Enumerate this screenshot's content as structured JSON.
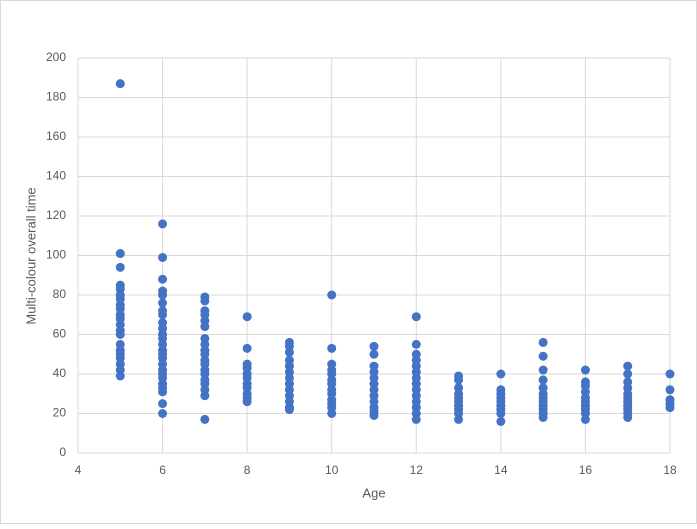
{
  "chart_data": {
    "type": "scatter",
    "x_label": "Age",
    "y_label": "Multi-colour overall time",
    "xlim": [
      4,
      18
    ],
    "xticks": [
      4,
      6,
      8,
      10,
      12,
      14,
      16,
      18
    ],
    "ylim": [
      0,
      200
    ],
    "yticks": [
      0,
      20,
      40,
      60,
      80,
      100,
      120,
      140,
      160,
      180,
      200
    ],
    "grid": true,
    "series": [
      {
        "color": "#4472c4",
        "x": [
          5,
          5,
          5,
          5,
          5,
          5,
          5,
          5,
          5,
          5,
          5,
          5,
          5,
          5,
          5,
          5,
          5,
          5,
          5,
          5,
          5,
          6,
          6,
          6,
          6,
          6,
          6,
          6,
          6,
          6,
          6,
          6,
          6,
          6,
          6,
          6,
          6,
          6,
          6,
          6,
          6,
          6,
          6,
          6,
          6,
          6,
          7,
          7,
          7,
          7,
          7,
          7,
          7,
          7,
          7,
          7,
          7,
          7,
          7,
          7,
          7,
          7,
          7,
          7,
          7,
          8,
          8,
          8,
          8,
          8,
          8,
          8,
          8,
          8,
          8,
          8,
          9,
          9,
          9,
          9,
          9,
          9,
          9,
          9,
          9,
          9,
          9,
          9,
          9,
          10,
          10,
          10,
          10,
          10,
          10,
          10,
          10,
          10,
          10,
          10,
          10,
          10,
          11,
          11,
          11,
          11,
          11,
          11,
          11,
          11,
          11,
          11,
          11,
          11,
          12,
          12,
          12,
          12,
          12,
          12,
          12,
          12,
          12,
          12,
          12,
          12,
          12,
          12,
          13,
          13,
          13,
          13,
          13,
          13,
          13,
          13,
          13,
          13,
          14,
          14,
          14,
          14,
          14,
          14,
          14,
          14,
          14,
          15,
          15,
          15,
          15,
          15,
          15,
          15,
          15,
          15,
          15,
          15,
          15,
          16,
          16,
          16,
          16,
          16,
          16,
          16,
          16,
          16,
          16,
          17,
          17,
          17,
          17,
          17,
          17,
          17,
          17,
          17,
          17,
          17,
          18,
          18,
          18,
          18,
          18
        ],
        "values": [
          187,
          101,
          94,
          85,
          83,
          80,
          78,
          75,
          73,
          70,
          68,
          65,
          62,
          60,
          55,
          52,
          50,
          48,
          45,
          42,
          39,
          116,
          99,
          88,
          82,
          80,
          76,
          72,
          70,
          66,
          63,
          60,
          58,
          55,
          52,
          50,
          48,
          45,
          42,
          40,
          38,
          35,
          33,
          31,
          25,
          20,
          79,
          77,
          72,
          70,
          67,
          64,
          58,
          55,
          52,
          50,
          47,
          45,
          42,
          40,
          37,
          35,
          32,
          29,
          17,
          69,
          53,
          45,
          43,
          40,
          38,
          35,
          33,
          30,
          28,
          26,
          56,
          54,
          51,
          47,
          44,
          41,
          38,
          35,
          32,
          29,
          26,
          23,
          22,
          80,
          53,
          45,
          42,
          40,
          37,
          35,
          32,
          30,
          27,
          25,
          23,
          20,
          54,
          50,
          44,
          41,
          38,
          35,
          32,
          29,
          26,
          23,
          21,
          19,
          69,
          55,
          50,
          47,
          44,
          41,
          38,
          35,
          32,
          29,
          26,
          23,
          20,
          17,
          39,
          37,
          33,
          30,
          28,
          26,
          24,
          22,
          20,
          17,
          40,
          32,
          30,
          28,
          26,
          24,
          22,
          20,
          16,
          56,
          49,
          42,
          37,
          33,
          30,
          28,
          26,
          24,
          22,
          20,
          18,
          42,
          36,
          34,
          31,
          28,
          26,
          24,
          22,
          20,
          17,
          44,
          40,
          36,
          33,
          30,
          28,
          26,
          24,
          22,
          20,
          18,
          40,
          32,
          27,
          25,
          23
        ]
      }
    ]
  }
}
